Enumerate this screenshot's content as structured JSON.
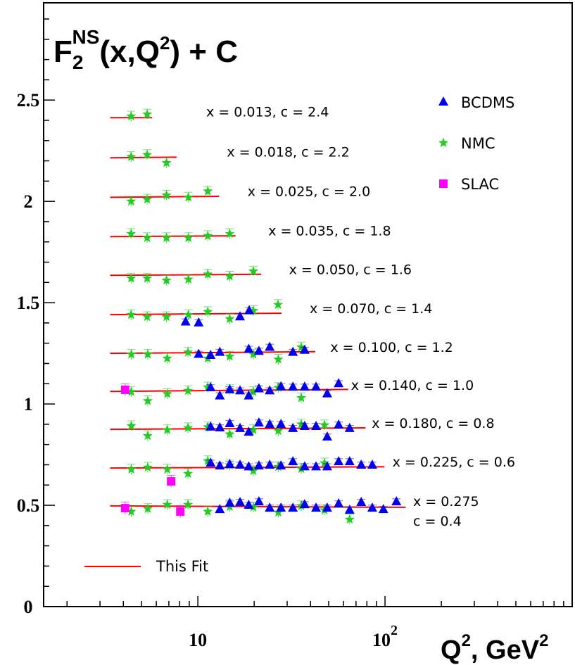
{
  "chart_data": {
    "type": "scatter",
    "title": {
      "main": "F",
      "sub": "2",
      "sup": "NS",
      "rest": "(x,Q",
      "rest_sup": "2",
      "tail": ") + C"
    },
    "xlabel": {
      "main": "Q",
      "sup1": "2",
      "mid": ", GeV",
      "sup2": "2"
    },
    "ylabel": "",
    "xscale": "log",
    "xlim": [
      1.5,
      1000
    ],
    "ylim": [
      0,
      2.98
    ],
    "x_ticks": [
      {
        "value": 10,
        "label": "10",
        "sup": ""
      },
      {
        "value": 100,
        "label": "10",
        "sup": "2"
      }
    ],
    "y_ticks": [
      {
        "value": 0,
        "label": "0"
      },
      {
        "value": 0.5,
        "label": "0.5"
      },
      {
        "value": 1,
        "label": "1"
      },
      {
        "value": 1.5,
        "label": "1.5"
      },
      {
        "value": 2,
        "label": "2"
      },
      {
        "value": 2.5,
        "label": "2.5"
      }
    ],
    "grid": false,
    "legend_position": "top-right",
    "colors": {
      "BCDMS": "#0000ee",
      "NMC": "#22cc22",
      "SLAC": "#ff00ff",
      "fit": "#ff0000"
    },
    "fit_name": "This Fit",
    "bins": [
      {
        "label": [
          "x = 0.013, c = 2.4"
        ],
        "fit": [
          [
            3.4,
            2.413
          ],
          [
            5.7,
            2.413
          ]
        ]
      },
      {
        "label": [
          "x = 0.018, c = 2.2"
        ],
        "fit": [
          [
            3.4,
            2.215
          ],
          [
            7.7,
            2.218
          ]
        ]
      },
      {
        "label": [
          "x = 0.025, c = 2.0"
        ],
        "fit": [
          [
            3.4,
            2.02
          ],
          [
            13.0,
            2.025
          ]
        ]
      },
      {
        "label": [
          "x = 0.035, c = 1.8"
        ],
        "fit": [
          [
            3.4,
            1.826
          ],
          [
            15.9,
            1.83
          ]
        ]
      },
      {
        "label": [
          "x = 0.050, c = 1.6"
        ],
        "fit": [
          [
            3.4,
            1.635
          ],
          [
            21.8,
            1.64
          ]
        ]
      },
      {
        "label": [
          "x = 0.070, c = 1.4"
        ],
        "fit": [
          [
            3.4,
            1.441
          ],
          [
            28,
            1.448
          ]
        ]
      },
      {
        "label": [
          "x = 0.100, c = 1.2"
        ],
        "fit": [
          [
            3.4,
            1.25
          ],
          [
            42.4,
            1.258
          ]
        ]
      },
      {
        "label": [
          "x = 0.140, c = 1.0"
        ],
        "fit": [
          [
            3.4,
            1.062
          ],
          [
            63.5,
            1.072
          ]
        ]
      },
      {
        "label": [
          "x = 0.180, c = 0.8"
        ],
        "fit": [
          [
            3.4,
            0.875
          ],
          [
            78.6,
            0.882
          ]
        ]
      },
      {
        "label": [
          "x = 0.225, c = 0.6"
        ],
        "fit": [
          [
            3.4,
            0.684
          ],
          [
            99.3,
            0.69
          ]
        ]
      },
      {
        "label": [
          "x = 0.275",
          "c = 0.4"
        ],
        "fit": [
          [
            3.4,
            0.497
          ],
          [
            129,
            0.49
          ]
        ]
      }
    ],
    "series": [
      {
        "name": "BCDMS",
        "marker": "triangle",
        "error": 0.015,
        "points": [
          [
            8.6,
            1.405
          ],
          [
            10.1,
            1.4
          ],
          [
            16.8,
            1.43
          ],
          [
            18.8,
            1.46
          ],
          [
            10.1,
            1.245
          ],
          [
            11.7,
            1.24
          ],
          [
            13.1,
            1.255
          ],
          [
            18.7,
            1.27
          ],
          [
            21.2,
            1.26
          ],
          [
            24.2,
            1.28
          ],
          [
            32.2,
            1.255
          ],
          [
            37.2,
            1.265
          ],
          [
            11.7,
            1.08
          ],
          [
            13.1,
            1.04
          ],
          [
            14.8,
            1.07
          ],
          [
            16.8,
            1.065
          ],
          [
            18.7,
            1.04
          ],
          [
            21.2,
            1.075
          ],
          [
            24.2,
            1.065
          ],
          [
            27.8,
            1.085
          ],
          [
            32.2,
            1.083
          ],
          [
            37.2,
            1.083
          ],
          [
            42.8,
            1.083
          ],
          [
            49.1,
            1.05
          ],
          [
            56.5,
            1.1
          ],
          [
            11.7,
            0.886
          ],
          [
            13.1,
            0.882
          ],
          [
            14.8,
            0.903
          ],
          [
            16.8,
            0.879
          ],
          [
            18.7,
            0.861
          ],
          [
            21.2,
            0.906
          ],
          [
            24.2,
            0.899
          ],
          [
            27.8,
            0.899
          ],
          [
            32.2,
            0.879
          ],
          [
            37.2,
            0.889
          ],
          [
            42.8,
            0.889
          ],
          [
            49.1,
            0.837
          ],
          [
            56.5,
            0.896
          ],
          [
            64.7,
            0.879
          ],
          [
            11.7,
            0.708
          ],
          [
            13.1,
            0.694
          ],
          [
            14.8,
            0.701
          ],
          [
            16.8,
            0.698
          ],
          [
            18.7,
            0.69
          ],
          [
            21.2,
            0.694
          ],
          [
            24.2,
            0.698
          ],
          [
            27.8,
            0.694
          ],
          [
            32.2,
            0.715
          ],
          [
            37.2,
            0.69
          ],
          [
            42.8,
            0.69
          ],
          [
            49.1,
            0.69
          ],
          [
            56.5,
            0.715
          ],
          [
            64.7,
            0.715
          ],
          [
            74.6,
            0.698
          ],
          [
            85.5,
            0.698
          ],
          [
            13.1,
            0.479
          ],
          [
            14.8,
            0.51
          ],
          [
            16.8,
            0.514
          ],
          [
            18.7,
            0.5
          ],
          [
            21.2,
            0.517
          ],
          [
            24.2,
            0.486
          ],
          [
            27.8,
            0.486
          ],
          [
            32.2,
            0.486
          ],
          [
            37.2,
            0.503
          ],
          [
            42.8,
            0.486
          ],
          [
            49.1,
            0.486
          ],
          [
            56.5,
            0.507
          ],
          [
            64.7,
            0.476
          ],
          [
            74.6,
            0.514
          ],
          [
            85.5,
            0.486
          ],
          [
            98,
            0.479
          ],
          [
            115,
            0.517
          ]
        ]
      },
      {
        "name": "NMC",
        "marker": "star",
        "error": 0.025,
        "points": [
          [
            4.4,
            2.42
          ],
          [
            5.36,
            2.43
          ],
          [
            4.4,
            2.22
          ],
          [
            5.36,
            2.23
          ],
          [
            6.8,
            2.19
          ],
          [
            4.4,
            2.0
          ],
          [
            5.36,
            2.01
          ],
          [
            6.8,
            2.03
          ],
          [
            8.9,
            2.02
          ],
          [
            11.3,
            2.05
          ],
          [
            4.4,
            1.84
          ],
          [
            5.36,
            1.82
          ],
          [
            6.8,
            1.82
          ],
          [
            8.9,
            1.82
          ],
          [
            11.3,
            1.83
          ],
          [
            14.8,
            1.84
          ],
          [
            4.4,
            1.62
          ],
          [
            5.36,
            1.62
          ],
          [
            6.8,
            1.61
          ],
          [
            8.9,
            1.615
          ],
          [
            11.3,
            1.64
          ],
          [
            14.8,
            1.63
          ],
          [
            19.8,
            1.655
          ],
          [
            4.4,
            1.44
          ],
          [
            5.36,
            1.43
          ],
          [
            6.8,
            1.43
          ],
          [
            8.9,
            1.44
          ],
          [
            11.3,
            1.455
          ],
          [
            14.8,
            1.42
          ],
          [
            19.8,
            1.46
          ],
          [
            26.8,
            1.49
          ],
          [
            4.41,
            1.245
          ],
          [
            5.4,
            1.245
          ],
          [
            6.86,
            1.225
          ],
          [
            8.86,
            1.255
          ],
          [
            11.3,
            1.225
          ],
          [
            14.8,
            1.235
          ],
          [
            19.8,
            1.245
          ],
          [
            26.9,
            1.22
          ],
          [
            35.7,
            1.28
          ],
          [
            4.41,
            1.06
          ],
          [
            5.4,
            1.015
          ],
          [
            6.86,
            1.05
          ],
          [
            8.86,
            1.065
          ],
          [
            11.3,
            1.083
          ],
          [
            14.8,
            1.07
          ],
          [
            19.8,
            1.06
          ],
          [
            26.9,
            1.08
          ],
          [
            35.7,
            1.03
          ],
          [
            4.41,
            0.892
          ],
          [
            5.4,
            0.843
          ],
          [
            6.86,
            0.872
          ],
          [
            8.86,
            0.882
          ],
          [
            11.3,
            0.886
          ],
          [
            14.8,
            0.851
          ],
          [
            19.8,
            0.872
          ],
          [
            26.9,
            0.868
          ],
          [
            35.7,
            0.9
          ],
          [
            47.5,
            0.896
          ],
          [
            4.41,
            0.677
          ],
          [
            5.4,
            0.687
          ],
          [
            6.86,
            0.677
          ],
          [
            8.86,
            0.656
          ],
          [
            11.3,
            0.719
          ],
          [
            14.8,
            0.698
          ],
          [
            19.8,
            0.67
          ],
          [
            26.9,
            0.69
          ],
          [
            35.7,
            0.68
          ],
          [
            47.5,
            0.708
          ],
          [
            4.41,
            0.469
          ],
          [
            5.4,
            0.483
          ],
          [
            6.86,
            0.503
          ],
          [
            8.86,
            0.503
          ],
          [
            11.3,
            0.469
          ],
          [
            14.8,
            0.493
          ],
          [
            19.8,
            0.49
          ],
          [
            26.9,
            0.465
          ],
          [
            35.7,
            0.497
          ],
          [
            47.5,
            0.476
          ],
          [
            64.7,
            0.43
          ]
        ]
      },
      {
        "name": "SLAC",
        "marker": "square",
        "error": 0.03,
        "points": [
          [
            4.09,
            1.07
          ],
          [
            7.2,
            0.618
          ],
          [
            4.09,
            0.486
          ],
          [
            8.06,
            0.469
          ]
        ]
      }
    ]
  }
}
